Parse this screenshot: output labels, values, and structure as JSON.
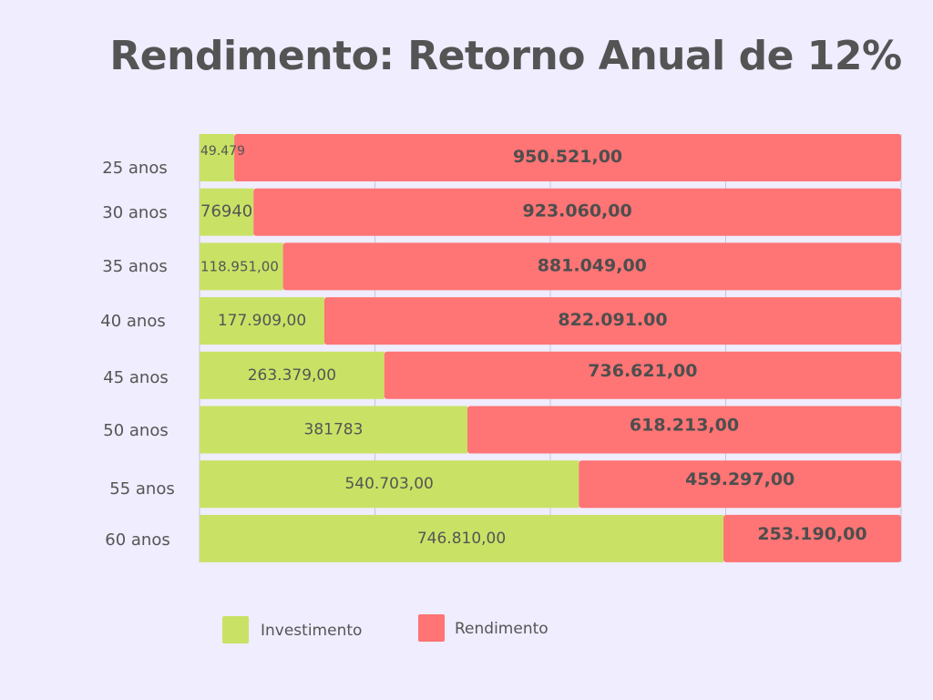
{
  "chart_data": {
    "type": "bar",
    "orientation": "horizontal",
    "stacked": true,
    "title": "Rendimento: Retorno Anual de 12%",
    "categories": [
      "25 anos",
      "30 anos",
      "35 anos",
      "40 anos",
      "45 anos",
      "50 anos",
      "55 anos",
      "60 anos"
    ],
    "series": [
      {
        "name": "Investimento",
        "color": "#c9e265",
        "values": [
          49479,
          76940,
          118951,
          177909,
          263379,
          381783,
          540703,
          746810
        ],
        "labels": [
          "49.479",
          "76940",
          "118.951,00",
          "177.909,00",
          "263.379,00",
          "381783",
          "540.703,00",
          "746.810,00"
        ]
      },
      {
        "name": "Rendimento",
        "color": "#ff7474",
        "values": [
          950521,
          923060,
          881049,
          822091,
          736621,
          618213,
          459297,
          253190
        ],
        "labels": [
          "950.521,00",
          "923.060,00",
          "881.049,00",
          "822.091.00",
          "736.621,00",
          "618.213,00",
          "459.297,00",
          "253.190,00"
        ]
      }
    ],
    "xlim": [
      0,
      1000000
    ],
    "grid": true,
    "legend_placement": "bottom-left"
  }
}
